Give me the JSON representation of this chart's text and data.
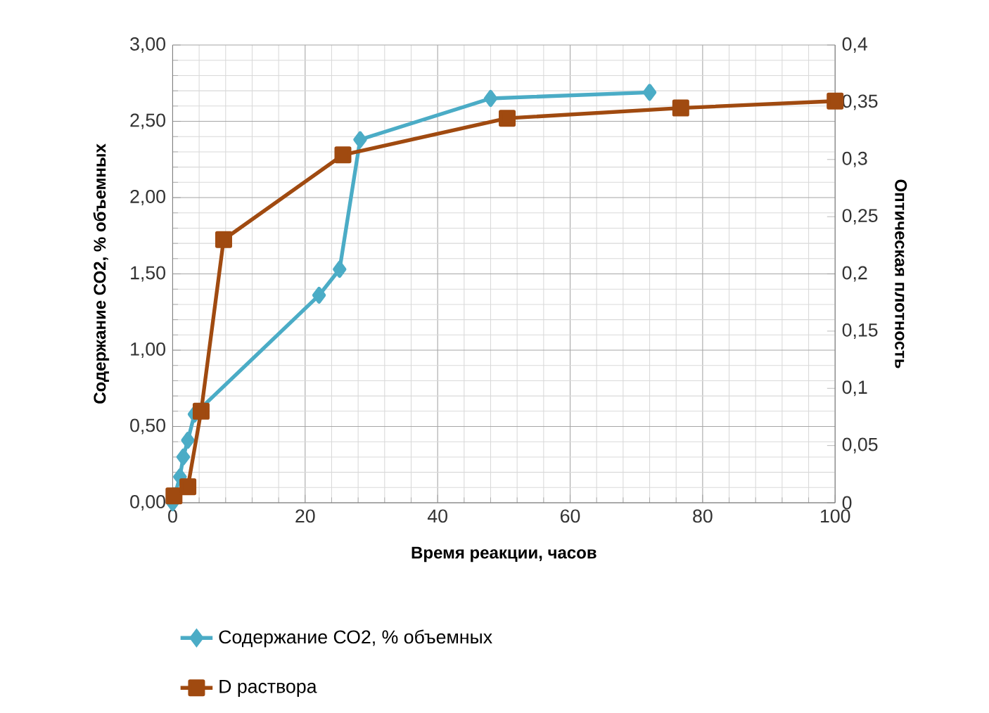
{
  "chart_data": {
    "type": "line",
    "xlabel": "Время реакции, часов",
    "ylabel": "Содержание СО2, % объемных",
    "y2label": "Оптическая плотность",
    "xlim": [
      0,
      100
    ],
    "xticks": [
      0,
      20,
      40,
      60,
      80,
      100
    ],
    "ylim": [
      0,
      3
    ],
    "yticks": [
      {
        "value": 0,
        "label": "0,00"
      },
      {
        "value": 0.5,
        "label": "0,50"
      },
      {
        "value": 1,
        "label": "1,00"
      },
      {
        "value": 1.5,
        "label": "1,50"
      },
      {
        "value": 2,
        "label": "2,00"
      },
      {
        "value": 2.5,
        "label": "2,50"
      },
      {
        "value": 3,
        "label": "3,00"
      }
    ],
    "y2lim": [
      0,
      0.4
    ],
    "y2ticks": [
      0,
      {
        "value": 0.05,
        "label": "0,05"
      },
      {
        "value": 0.1,
        "label": "0,1"
      },
      {
        "value": 0.15,
        "label": "0,15"
      },
      {
        "value": 0.2,
        "label": "0,2"
      },
      {
        "value": 0.25,
        "label": "0,25"
      },
      {
        "value": 0.3,
        "label": "0,3"
      },
      {
        "value": 0.35,
        "label": "0,35"
      },
      {
        "value": 0.4,
        "label": "0,4"
      }
    ],
    "grid": true,
    "legend": "bottom",
    "series": [
      {
        "name": "Содержание СО2, % объемных",
        "color": "#4bacc6",
        "marker": "diamond",
        "x": [
          0,
          1.1,
          1.6,
          2.3,
          3.3,
          22.1,
          25.2,
          28.3,
          48,
          72
        ],
        "values": [
          0,
          0.17,
          0.3,
          0.41,
          0.58,
          1.36,
          1.53,
          2.38,
          2.65,
          2.69
        ]
      },
      {
        "name": "D раствора",
        "color": "#a04a10",
        "marker": "square",
        "axis": "y2",
        "x": [
          0.2,
          2.3,
          4.3,
          7.7,
          25.7,
          50.5,
          76.7,
          100
        ],
        "values": [
          0.006,
          0.014,
          0.08,
          0.23,
          0.304,
          0.336,
          0.345,
          0.351
        ]
      }
    ]
  }
}
